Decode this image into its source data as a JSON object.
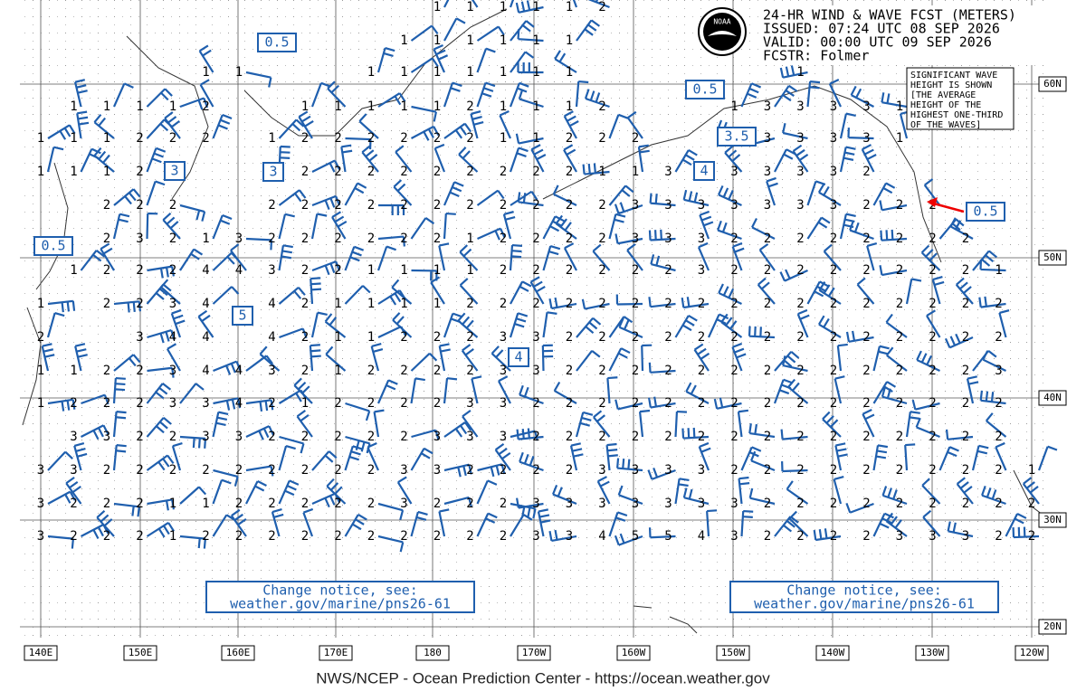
{
  "header": {
    "lines": [
      "24-HR WIND & WAVE FCST (METERS)",
      "ISSUED: 07:24 UTC 08 SEP 2026",
      "VALID:  00:00 UTC 09 SEP 2026",
      "FCSTR:  Folmer"
    ],
    "logo": "NOAA"
  },
  "legend": {
    "lines": [
      "SIGNIFICANT WAVE",
      "HEIGHT IS SHOWN",
      "[THE AVERAGE",
      "HEIGHT OF THE",
      "HIGHEST ONE-THIRD",
      "OF THE WAVES]"
    ]
  },
  "longitudes": [
    "140E",
    "150E",
    "160E",
    "170E",
    "180",
    "170W",
    "160W",
    "150W",
    "140W",
    "130W",
    "120W"
  ],
  "latitudes": [
    "60N",
    "50N",
    "40N",
    "30N",
    "20N"
  ],
  "boxes": [
    "0.5",
    "0.5",
    "3.5",
    "3",
    "3",
    "4",
    "0.5",
    "5",
    "4",
    "0.5"
  ],
  "notices": [
    {
      "lines": [
        "Change notice, see:",
        "weather.gov/marine/pns26-61"
      ]
    },
    {
      "lines": [
        "Change notice, see:",
        "weather.gov/marine/pns26-61"
      ]
    }
  ],
  "footer": "NWS/NCEP - Ocean Prediction Center - https://ocean.weather.gov",
  "wave_rows": [
    [
      null,
      null,
      null,
      null,
      null,
      null,
      null,
      null,
      null,
      null,
      null,
      null,
      1,
      1,
      1,
      1,
      1,
      2,
      null,
      null,
      null,
      null,
      null,
      null,
      null,
      null,
      null,
      null,
      null,
      null,
      null
    ],
    [
      null,
      null,
      null,
      null,
      null,
      null,
      null,
      null,
      null,
      null,
      null,
      1,
      1,
      1,
      1,
      1,
      1,
      null,
      null,
      null,
      null,
      null,
      null,
      null,
      null,
      null,
      null,
      null,
      null,
      null,
      null
    ],
    [
      null,
      null,
      null,
      null,
      null,
      1,
      1,
      null,
      null,
      null,
      1,
      1,
      1,
      1,
      1,
      1,
      1,
      null,
      null,
      null,
      null,
      null,
      null,
      1,
      null,
      null,
      null,
      null,
      null,
      null,
      null
    ],
    [
      null,
      1,
      1,
      1,
      1,
      2,
      null,
      null,
      1,
      1,
      1,
      1,
      1,
      2,
      1,
      1,
      1,
      2,
      null,
      null,
      null,
      1,
      3,
      3,
      3,
      3,
      1,
      null,
      null,
      null,
      null
    ],
    [
      1,
      1,
      1,
      2,
      2,
      2,
      null,
      1,
      2,
      2,
      2,
      2,
      2,
      2,
      1,
      1,
      2,
      2,
      2,
      null,
      null,
      3,
      3,
      3,
      3,
      3,
      1,
      null,
      null,
      null,
      null
    ],
    [
      1,
      1,
      1,
      2,
      null,
      null,
      null,
      2,
      2,
      2,
      2,
      2,
      2,
      2,
      2,
      2,
      2,
      1,
      1,
      3,
      null,
      3,
      3,
      3,
      3,
      2,
      null,
      null,
      null,
      null,
      null
    ],
    [
      null,
      null,
      2,
      2,
      2,
      null,
      null,
      2,
      2,
      2,
      2,
      2,
      2,
      2,
      2,
      2,
      2,
      2,
      3,
      3,
      3,
      3,
      3,
      3,
      3,
      2,
      2,
      2,
      null,
      null,
      null
    ],
    [
      null,
      null,
      2,
      3,
      2,
      1,
      3,
      2,
      2,
      2,
      2,
      2,
      2,
      1,
      2,
      2,
      2,
      2,
      3,
      3,
      3,
      2,
      2,
      2,
      2,
      2,
      2,
      2,
      2,
      null,
      null
    ],
    [
      null,
      1,
      2,
      2,
      2,
      4,
      4,
      3,
      2,
      2,
      1,
      1,
      1,
      1,
      2,
      2,
      2,
      2,
      2,
      2,
      3,
      2,
      2,
      2,
      2,
      2,
      2,
      2,
      2,
      1,
      null
    ],
    [
      1,
      null,
      2,
      2,
      3,
      4,
      null,
      4,
      2,
      1,
      1,
      1,
      1,
      2,
      2,
      2,
      2,
      2,
      2,
      2,
      2,
      2,
      2,
      2,
      2,
      2,
      2,
      2,
      2,
      2,
      null
    ],
    [
      2,
      null,
      null,
      3,
      4,
      4,
      null,
      4,
      2,
      1,
      1,
      2,
      2,
      2,
      3,
      3,
      2,
      2,
      2,
      2,
      2,
      2,
      2,
      2,
      2,
      2,
      2,
      2,
      2,
      2,
      null
    ],
    [
      1,
      1,
      2,
      2,
      3,
      4,
      4,
      3,
      2,
      1,
      2,
      2,
      2,
      2,
      3,
      3,
      2,
      2,
      2,
      2,
      2,
      2,
      2,
      2,
      2,
      2,
      2,
      2,
      2,
      3,
      null
    ],
    [
      1,
      2,
      2,
      2,
      3,
      3,
      4,
      2,
      1,
      2,
      2,
      2,
      2,
      3,
      3,
      2,
      2,
      2,
      2,
      2,
      2,
      2,
      2,
      2,
      2,
      2,
      2,
      2,
      2,
      2,
      null
    ],
    [
      null,
      3,
      3,
      2,
      2,
      3,
      3,
      2,
      2,
      2,
      2,
      2,
      3,
      3,
      3,
      2,
      2,
      2,
      2,
      2,
      2,
      2,
      2,
      2,
      2,
      2,
      2,
      2,
      2,
      2,
      null
    ],
    [
      3,
      3,
      2,
      2,
      2,
      2,
      2,
      2,
      2,
      2,
      2,
      3,
      3,
      2,
      2,
      2,
      2,
      3,
      3,
      3,
      3,
      2,
      2,
      2,
      2,
      2,
      2,
      2,
      2,
      2,
      1
    ],
    [
      3,
      2,
      2,
      2,
      1,
      1,
      2,
      2,
      2,
      2,
      2,
      3,
      2,
      2,
      2,
      3,
      3,
      3,
      3,
      3,
      3,
      3,
      2,
      2,
      2,
      2,
      2,
      2,
      2,
      2,
      2
    ],
    [
      3,
      2,
      2,
      2,
      1,
      2,
      2,
      2,
      2,
      2,
      2,
      2,
      2,
      2,
      2,
      3,
      3,
      4,
      5,
      5,
      4,
      3,
      2,
      2,
      2,
      2,
      3,
      3,
      3,
      2,
      2
    ]
  ]
}
